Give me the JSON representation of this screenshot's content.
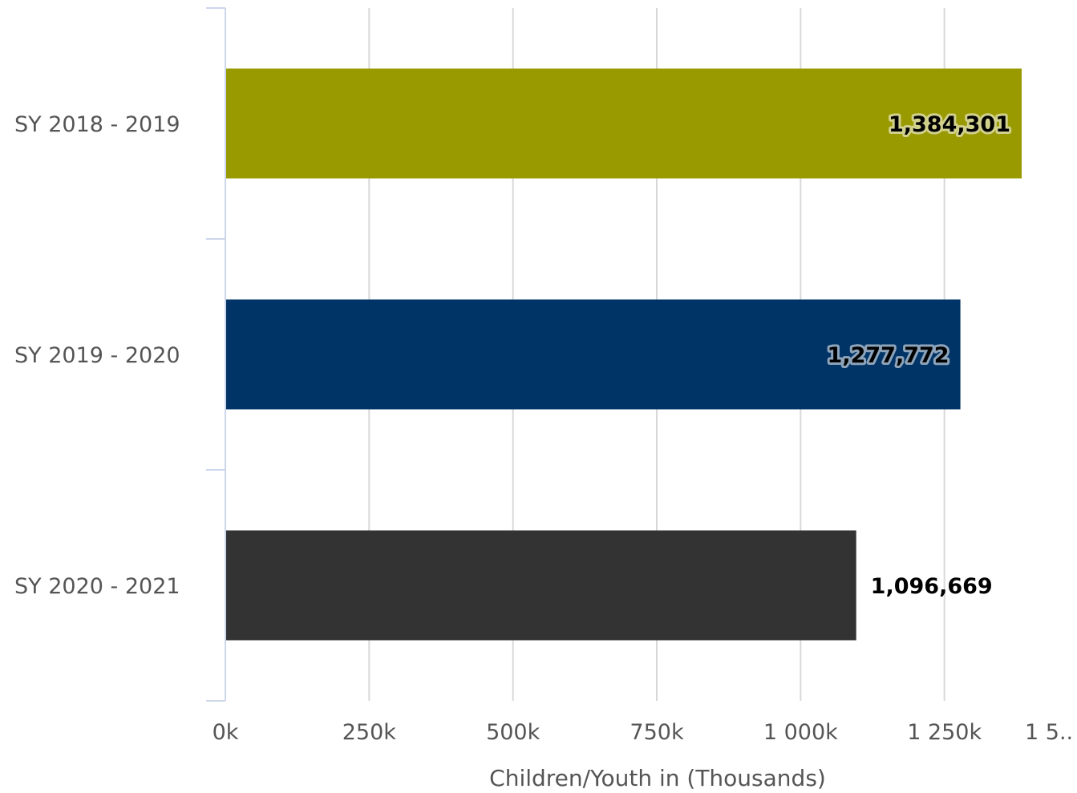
{
  "chart_data": {
    "type": "bar",
    "orientation": "horizontal",
    "categories": [
      "SY 2018 - 2019",
      "SY 2019 - 2020",
      "SY 2020 - 2021"
    ],
    "values": [
      1384301,
      1277772,
      1096669
    ],
    "data_labels": [
      "1,384,301",
      "1,277,772",
      "1,096,669"
    ],
    "colors": [
      "#999900",
      "#003366",
      "#333333"
    ],
    "x_ticks": [
      0,
      250000,
      500000,
      750000,
      1000000,
      1250000,
      1500000
    ],
    "x_tick_labels": [
      "0k",
      "250k",
      "500k",
      "750k",
      "1 000k",
      "1 250k",
      "1 5.."
    ],
    "xlim": [
      0,
      1500000
    ],
    "xlabel": "Children/Youth in (Thousands)",
    "ylabel": "",
    "title": "",
    "grid": true,
    "legend": false
  }
}
